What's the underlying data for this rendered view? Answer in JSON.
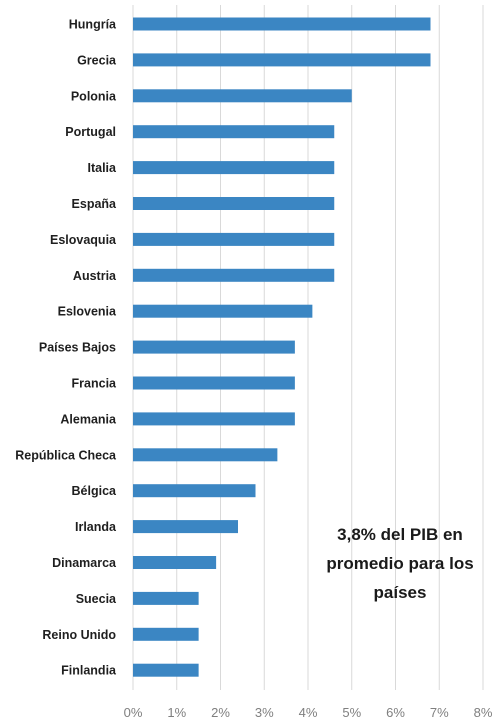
{
  "chart_data": {
    "type": "bar",
    "orientation": "horizontal",
    "categories": [
      "Hungría",
      "Grecia",
      "Polonia",
      "Portugal",
      "Italia",
      "España",
      "Eslovaquia",
      "Austria",
      "Eslovenia",
      "Países Bajos",
      "Francia",
      "Alemania",
      "República Checa",
      "Bélgica",
      "Irlanda",
      "Dinamarca",
      "Suecia",
      "Reino Unido",
      "Finlandia"
    ],
    "values": [
      6.8,
      6.8,
      5.0,
      4.6,
      4.6,
      4.6,
      4.6,
      4.6,
      4.1,
      3.7,
      3.7,
      3.7,
      3.3,
      2.8,
      2.4,
      1.9,
      1.5,
      1.5,
      1.5
    ],
    "xlim": [
      0,
      8
    ],
    "ticks": [
      "0%",
      "1%",
      "2%",
      "3%",
      "4%",
      "5%",
      "6%",
      "7%",
      "8%"
    ],
    "grid": true,
    "bar_color": "#3b86c3",
    "annotation": "3,8% del PIB en promedio para los países"
  }
}
